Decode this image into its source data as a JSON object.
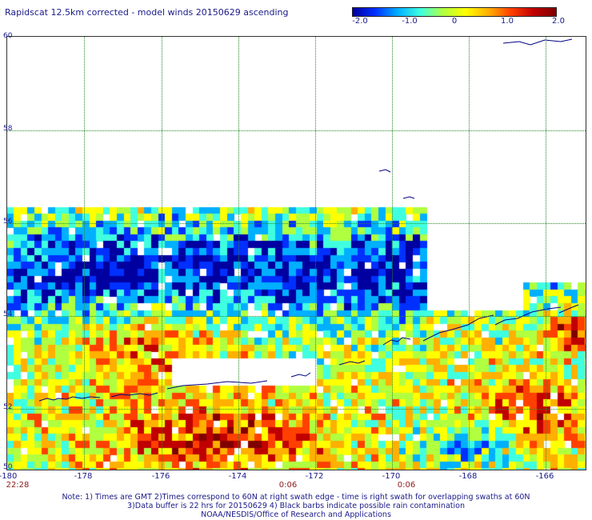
{
  "title": "Rapidscat 12.5km corrected - model winds 20150629 ascending",
  "colorbar": {
    "ticks": [
      "-2.0",
      "-1.0",
      "0",
      "1.0",
      "2.0"
    ],
    "colors": [
      "#0000a0",
      "#0030ff",
      "#00b0ff",
      "#40ffe0",
      "#b0ff40",
      "#ffff00",
      "#ffb000",
      "#ff4000",
      "#c00000",
      "#800000"
    ]
  },
  "map": {
    "lat_labels": [
      "60",
      "58",
      "56",
      "54",
      "52",
      "50"
    ],
    "lon_labels": [
      "-180",
      "-178",
      "-176",
      "-174",
      "-172",
      "-170",
      "-168",
      "-166"
    ],
    "time_labels": [
      "22:28",
      "0:06",
      "0:06"
    ],
    "coastline_color": "#000080",
    "grid_color": "#2a8a2a"
  },
  "notes": [
    "Note: 1) Times are GMT 2)Times correspond to 60N at right swath edge - time is right swath for overlapping swaths at 60N",
    "3)Data buffer is 22 hrs for 20150629 4) Black barbs indicate possible rain contamination",
    "NOAA/NESDIS/Office of Research and Applications"
  ]
}
